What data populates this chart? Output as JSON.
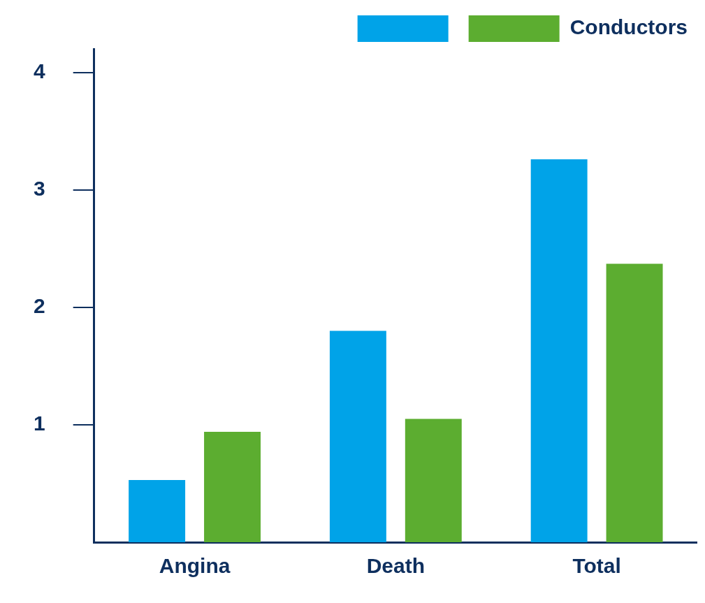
{
  "chart_data": {
    "type": "bar",
    "categories": [
      "Angina",
      "Death",
      "Total"
    ],
    "series": [
      {
        "color": "#00a3e8",
        "values": [
          0.53,
          1.8,
          3.26
        ]
      },
      {
        "name": "Conductors",
        "color": "#5cad30",
        "values": [
          0.94,
          1.05,
          2.37
        ]
      }
    ],
    "ylim": [
      0,
      4.2
    ],
    "yticks": [
      1,
      2,
      3,
      4
    ],
    "grid": false,
    "legend": "top right"
  }
}
